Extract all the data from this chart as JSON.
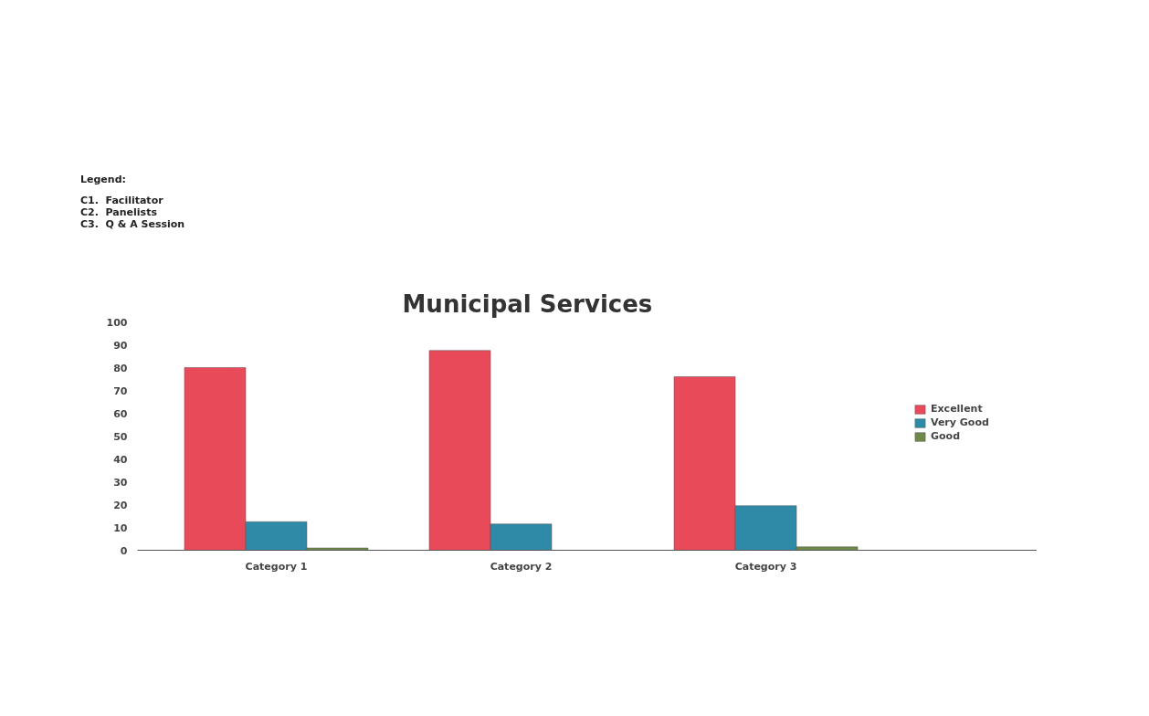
{
  "chart_data": {
    "type": "bar",
    "title": "Municipal Services",
    "annotations": [
      "Legend:",
      "C1.  Facilitator",
      "C2.  Panelists",
      "C3.  Q & A Session"
    ],
    "categories": [
      "Category 1",
      "Category 2",
      "Category 3"
    ],
    "series": [
      {
        "name": "Excellent",
        "color": "#e84a5a",
        "values": [
          80,
          87.5,
          76
        ]
      },
      {
        "name": "Very Good",
        "color": "#2f8aa8",
        "values": [
          12.5,
          11.5,
          19.5
        ]
      },
      {
        "name": "Good",
        "color": "#6e8a4a",
        "values": [
          1,
          null,
          1.5
        ]
      }
    ],
    "ylim": [
      0,
      100
    ],
    "yticks": [
      0,
      10,
      20,
      30,
      40,
      50,
      60,
      70,
      80,
      90,
      100
    ],
    "grid": false,
    "legend": "right"
  }
}
